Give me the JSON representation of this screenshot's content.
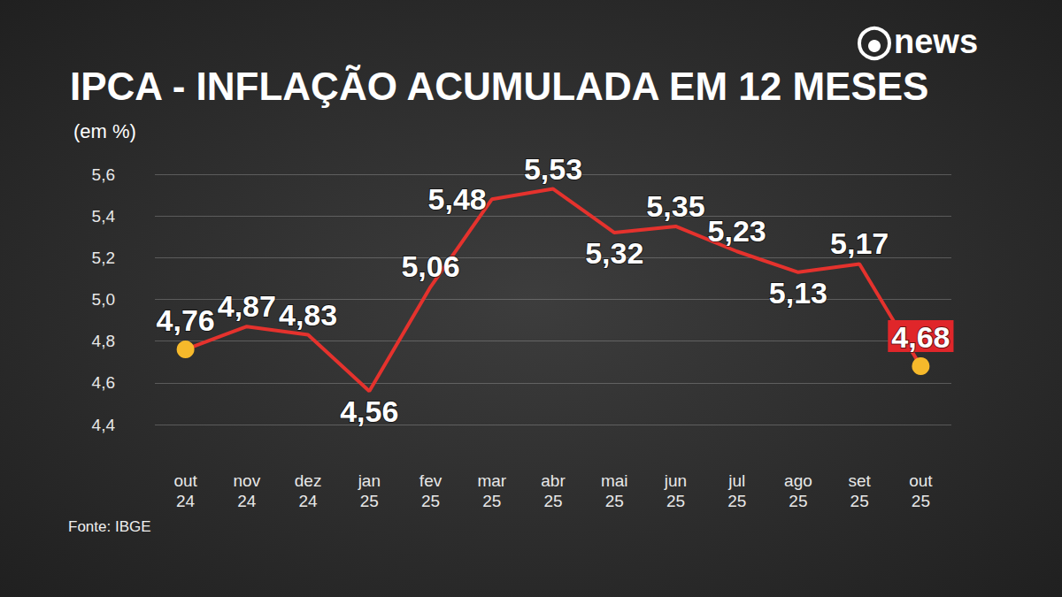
{
  "chart_data": {
    "type": "line",
    "brand": "news",
    "title": "IPCA - INFLAÇÃO ACUMULADA EM 12 MESES",
    "subtitle": "(em %)",
    "source": "Fonte: IBGE",
    "categories": [
      "out 24",
      "nov 24",
      "dez 24",
      "jan 25",
      "fev 25",
      "mar 25",
      "abr 25",
      "mai 25",
      "jun 25",
      "jul 25",
      "ago 25",
      "set 25",
      "out 25"
    ],
    "values": [
      4.76,
      4.87,
      4.83,
      4.56,
      5.06,
      5.48,
      5.53,
      5.32,
      5.35,
      5.23,
      5.13,
      5.17,
      4.68
    ],
    "value_labels": [
      "4,76",
      "4,87",
      "4,83",
      "4,56",
      "5,06",
      "5,48",
      "5,53",
      "5,32",
      "5,35",
      "5,23",
      "5,13",
      "5,17",
      "4,68"
    ],
    "color": "#e5322d",
    "ylim": [
      4.4,
      5.6
    ],
    "yticks": [
      {
        "value": 4.4,
        "label": "4,4"
      },
      {
        "value": 4.6,
        "label": "4,6"
      },
      {
        "value": 4.8,
        "label": "4,8"
      },
      {
        "value": 5.0,
        "label": "5,0"
      },
      {
        "value": 5.2,
        "label": "5,2"
      },
      {
        "value": 5.4,
        "label": "5,4"
      },
      {
        "value": 5.6,
        "label": "5,6"
      }
    ],
    "grid": true,
    "data_labels": true,
    "marker": "circle"
  }
}
